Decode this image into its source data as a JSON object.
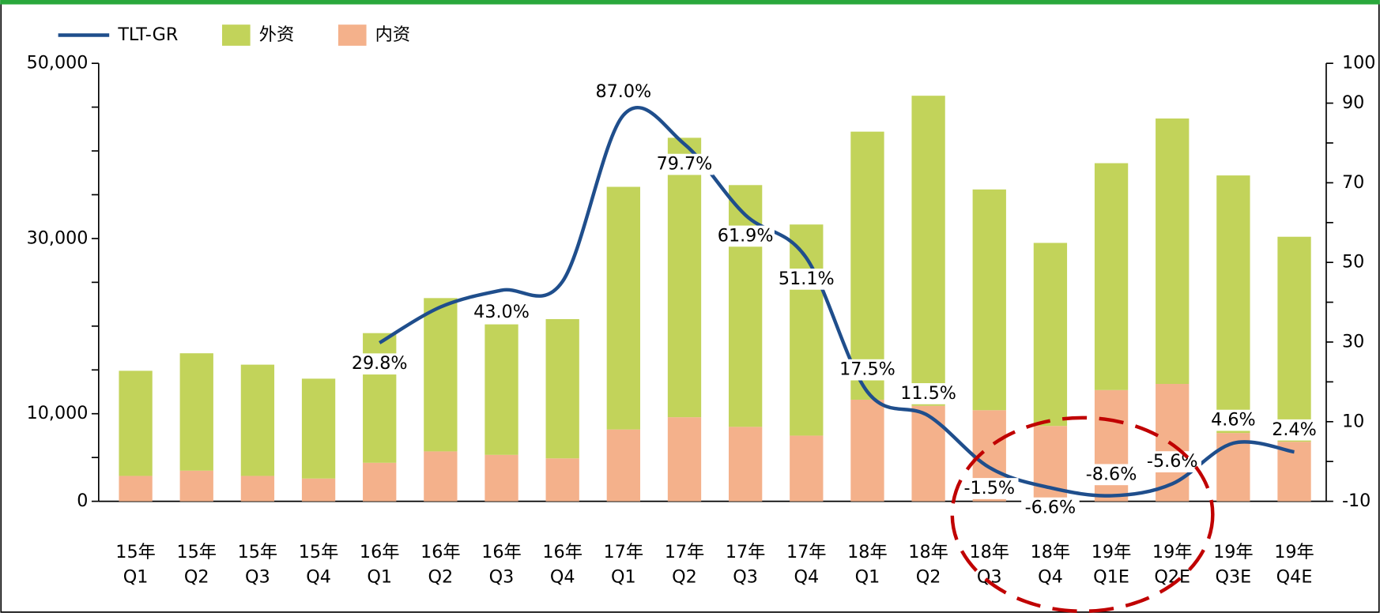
{
  "chart_data": {
    "type": "bar",
    "stacked": true,
    "categories": [
      "15年\nQ1",
      "15年\nQ2",
      "15年\nQ3",
      "15年\nQ4",
      "16年\nQ1",
      "16年\nQ2",
      "16年\nQ3",
      "16年\nQ4",
      "17年\nQ1",
      "17年\nQ2",
      "17年\nQ3",
      "17年\nQ4",
      "18年\nQ1",
      "18年\nQ2",
      "18年\nQ3",
      "18年\nQ4",
      "19年\nQ1E",
      "19年\nQ2E",
      "19年\nQ3E",
      "19年\nQ4E"
    ],
    "series": [
      {
        "name": "TLT-GR",
        "type": "line",
        "axis": "y2",
        "color": "#1f4e8c",
        "values": [
          null,
          null,
          null,
          null,
          29.8,
          38.8,
          43.0,
          45.2,
          87.0,
          79.7,
          61.9,
          51.1,
          17.5,
          11.5,
          -1.5,
          -6.6,
          -8.6,
          -5.6,
          4.6,
          2.4
        ],
        "value_labels": [
          null,
          null,
          null,
          null,
          "29.8%",
          null,
          "43.0%",
          null,
          "87.0%",
          "79.7%",
          "61.9%",
          "51.1%",
          "17.5%",
          "11.5%",
          "-1.5%",
          "-6.6%",
          "-8.6%",
          "-5.6%",
          "4.6%",
          "2.4%"
        ]
      },
      {
        "name": "外资",
        "type": "bar",
        "color": "#c2d35a",
        "values": [
          12000,
          13400,
          12700,
          11400,
          14800,
          17500,
          14900,
          15900,
          27700,
          31900,
          27600,
          24100,
          30600,
          35400,
          25200,
          20900,
          25900,
          30300,
          29400,
          23400
        ]
      },
      {
        "name": "内资",
        "type": "bar",
        "color": "#f4b18b",
        "values": [
          2900,
          3500,
          2900,
          2600,
          4400,
          5700,
          5300,
          4900,
          8200,
          9600,
          8500,
          7500,
          11600,
          10900,
          10400,
          8600,
          12700,
          13400,
          7800,
          6800
        ]
      }
    ],
    "ylim": [
      0,
      50000
    ],
    "yticks": [
      0,
      {
        "value": 10000,
        "label": "10,000"
      },
      {
        "value": 30000,
        "label": "30,000"
      },
      {
        "value": 50000,
        "label": "50,000"
      }
    ],
    "y_minor_ticks": [
      5000,
      15000,
      20000,
      25000,
      35000,
      40000,
      45000
    ],
    "y2lim": [
      -10,
      100
    ],
    "y2ticks": [
      -10,
      10,
      30,
      50,
      70,
      90,
      100
    ],
    "y2_minor_ticks": [
      0,
      20,
      40,
      60,
      80
    ],
    "legend": "top-left"
  }
}
